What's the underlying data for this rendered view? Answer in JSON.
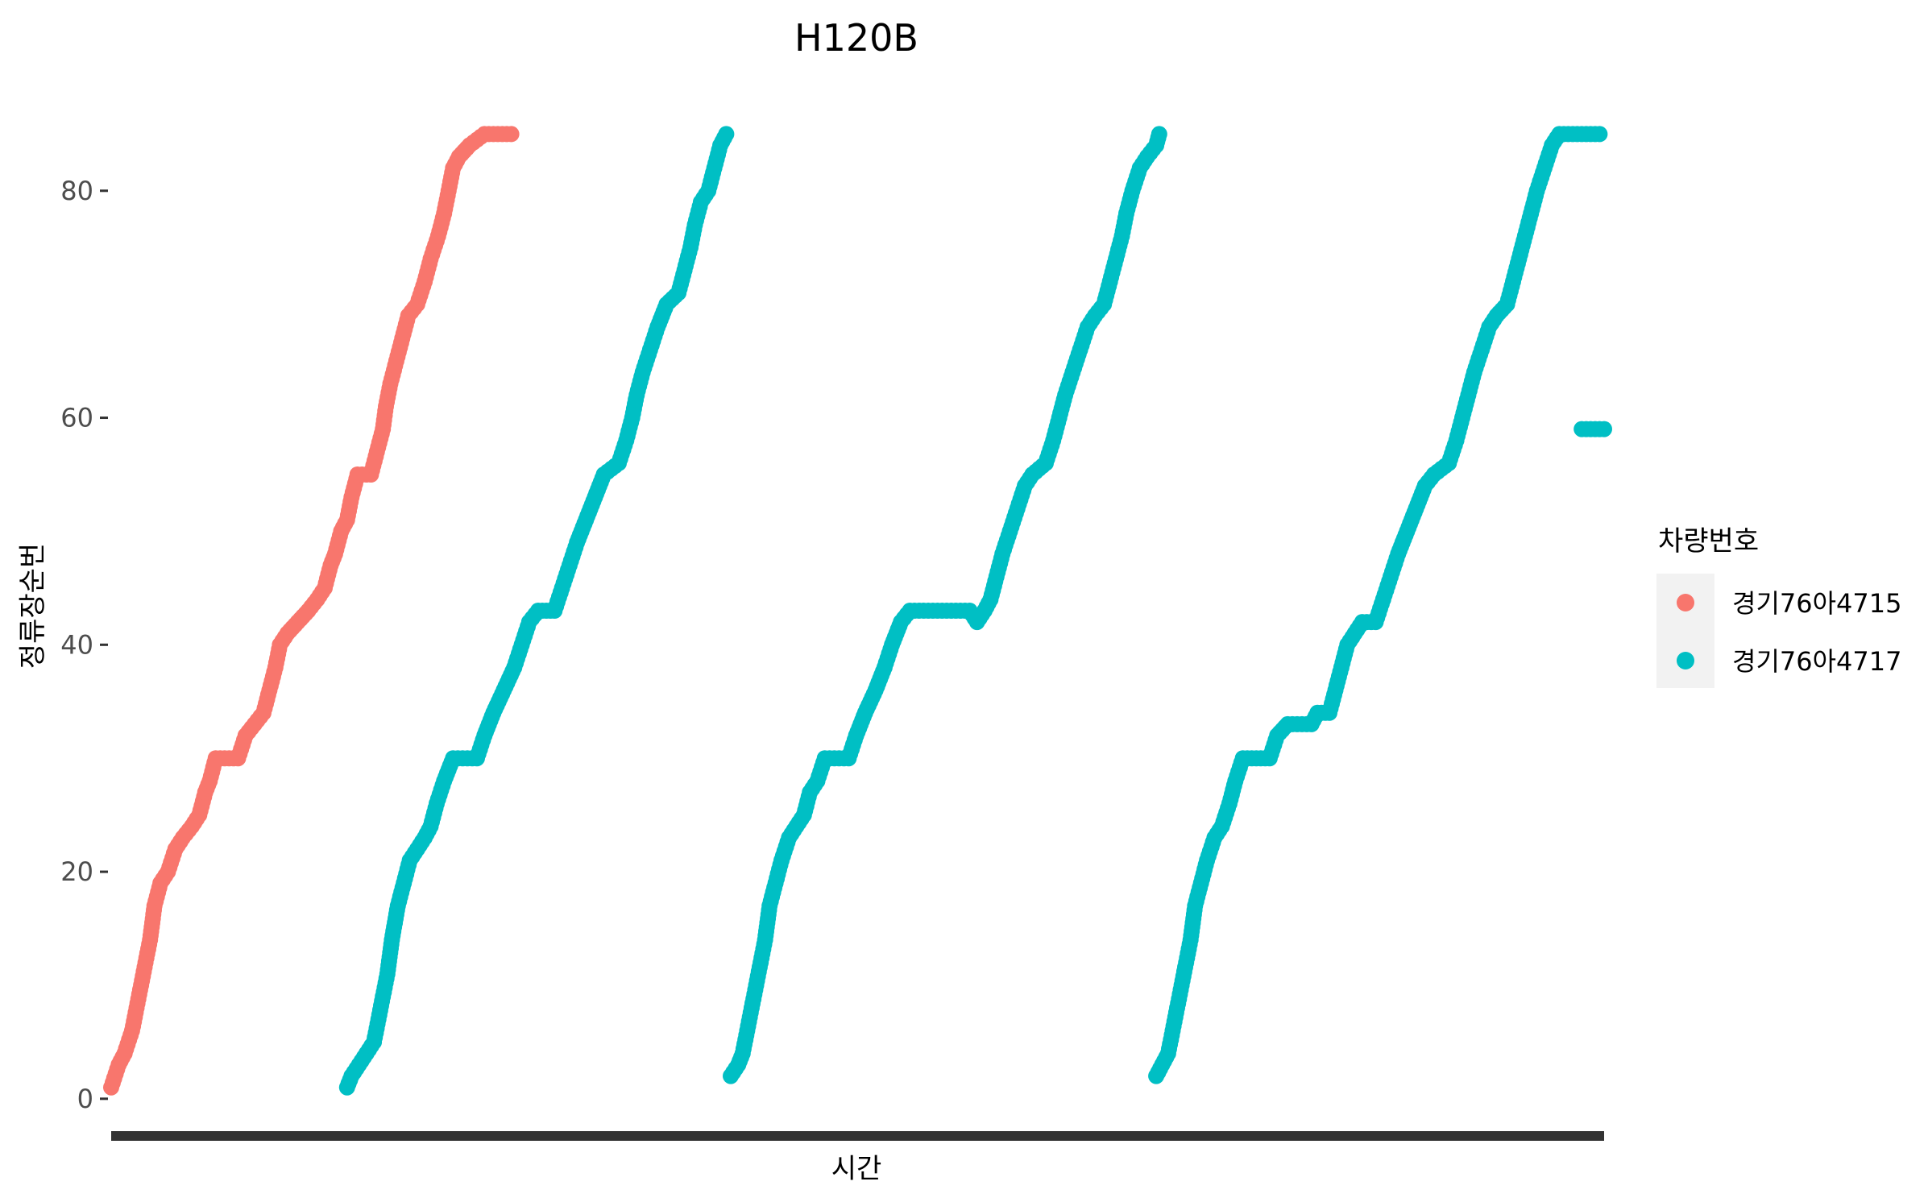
{
  "chart_data": {
    "type": "scatter",
    "title": "H120B",
    "xlabel": "시간",
    "ylabel": "정류장순번",
    "yticks": [
      0,
      20,
      40,
      60,
      80
    ],
    "ylim": [
      -2,
      89
    ],
    "xlim": [
      0,
      100
    ],
    "x_tick_labels": "dense, illegible",
    "grid": false,
    "legend": {
      "title": "차량번호",
      "placement": "right",
      "entries": [
        "경기76아4715",
        "경기76아4717"
      ]
    },
    "colors": {
      "경기76아4715": "#F8766D",
      "경기76아4717": "#00BFC4"
    },
    "series": [
      {
        "name": "경기76아4715",
        "color": "#F8766D",
        "points": [
          [
            0.0,
            1
          ],
          [
            0.5,
            3
          ],
          [
            0.9,
            4
          ],
          [
            1.4,
            6
          ],
          [
            1.7,
            8
          ],
          [
            2.0,
            10
          ],
          [
            2.3,
            12
          ],
          [
            2.6,
            14
          ],
          [
            2.9,
            17
          ],
          [
            3.3,
            19
          ],
          [
            3.8,
            20
          ],
          [
            4.3,
            22
          ],
          [
            4.8,
            23
          ],
          [
            5.4,
            24
          ],
          [
            5.9,
            25
          ],
          [
            6.3,
            27
          ],
          [
            6.6,
            28
          ],
          [
            7.0,
            30
          ],
          [
            8.5,
            30
          ],
          [
            9.0,
            32
          ],
          [
            9.6,
            33
          ],
          [
            10.2,
            34
          ],
          [
            10.6,
            36
          ],
          [
            11.0,
            38
          ],
          [
            11.3,
            40
          ],
          [
            11.8,
            41
          ],
          [
            12.5,
            42
          ],
          [
            13.2,
            43
          ],
          [
            13.8,
            44
          ],
          [
            14.3,
            45
          ],
          [
            14.7,
            47
          ],
          [
            15.0,
            48
          ],
          [
            15.4,
            50
          ],
          [
            15.8,
            51
          ],
          [
            16.1,
            53
          ],
          [
            16.5,
            55
          ],
          [
            17.4,
            55
          ],
          [
            17.8,
            57
          ],
          [
            18.2,
            59
          ],
          [
            18.4,
            61
          ],
          [
            18.7,
            63
          ],
          [
            19.1,
            65
          ],
          [
            19.5,
            67
          ],
          [
            19.9,
            69
          ],
          [
            20.5,
            70
          ],
          [
            21.0,
            72
          ],
          [
            21.4,
            74
          ],
          [
            21.9,
            76
          ],
          [
            22.3,
            78
          ],
          [
            22.6,
            80
          ],
          [
            22.9,
            82
          ],
          [
            23.3,
            83
          ],
          [
            24.0,
            84
          ],
          [
            25.0,
            85
          ],
          [
            26.8,
            85
          ]
        ]
      },
      {
        "name": "경기76아4717",
        "color": "#00BFC4",
        "segments": [
          [
            [
              15.8,
              1
            ],
            [
              16.1,
              2
            ],
            [
              16.6,
              3
            ],
            [
              17.1,
              4
            ],
            [
              17.6,
              5
            ],
            [
              17.9,
              7
            ],
            [
              18.2,
              9
            ],
            [
              18.5,
              11
            ],
            [
              18.8,
              14
            ],
            [
              19.2,
              17
            ],
            [
              19.6,
              19
            ],
            [
              20.0,
              21
            ],
            [
              20.5,
              22
            ],
            [
              21.0,
              23
            ],
            [
              21.4,
              24
            ],
            [
              21.8,
              26
            ],
            [
              22.3,
              28
            ],
            [
              22.9,
              30
            ],
            [
              24.5,
              30
            ],
            [
              25.0,
              32
            ],
            [
              25.6,
              34
            ],
            [
              26.3,
              36
            ],
            [
              27.0,
              38
            ],
            [
              27.5,
              40
            ],
            [
              28.0,
              42
            ],
            [
              28.6,
              43
            ],
            [
              29.7,
              43
            ],
            [
              30.2,
              45
            ],
            [
              30.7,
              47
            ],
            [
              31.2,
              49
            ],
            [
              31.8,
              51
            ],
            [
              32.4,
              53
            ],
            [
              33.0,
              55
            ],
            [
              34.0,
              56
            ],
            [
              34.5,
              58
            ],
            [
              34.9,
              60
            ],
            [
              35.2,
              62
            ],
            [
              35.6,
              64
            ],
            [
              36.1,
              66
            ],
            [
              36.6,
              68
            ],
            [
              37.2,
              70
            ],
            [
              38.0,
              71
            ],
            [
              38.4,
              73
            ],
            [
              38.8,
              75
            ],
            [
              39.1,
              77
            ],
            [
              39.5,
              79
            ],
            [
              40.0,
              80
            ],
            [
              40.4,
              82
            ],
            [
              40.8,
              84
            ],
            [
              41.2,
              85
            ]
          ],
          [
            [
              41.5,
              2
            ],
            [
              42.0,
              3
            ],
            [
              42.3,
              4
            ],
            [
              42.6,
              6
            ],
            [
              42.9,
              8
            ],
            [
              43.2,
              10
            ],
            [
              43.5,
              12
            ],
            [
              43.8,
              14
            ],
            [
              44.1,
              17
            ],
            [
              44.5,
              19
            ],
            [
              44.9,
              21
            ],
            [
              45.4,
              23
            ],
            [
              45.9,
              24
            ],
            [
              46.4,
              25
            ],
            [
              46.8,
              27
            ],
            [
              47.3,
              28
            ],
            [
              47.8,
              30
            ],
            [
              49.4,
              30
            ],
            [
              49.9,
              32
            ],
            [
              50.5,
              34
            ],
            [
              51.2,
              36
            ],
            [
              51.8,
              38
            ],
            [
              52.3,
              40
            ],
            [
              52.9,
              42
            ],
            [
              53.5,
              43
            ],
            [
              57.5,
              43
            ],
            [
              58.0,
              42
            ],
            [
              58.5,
              43
            ],
            [
              58.9,
              44
            ],
            [
              59.3,
              46
            ],
            [
              59.7,
              48
            ],
            [
              60.2,
              50
            ],
            [
              60.7,
              52
            ],
            [
              61.2,
              54
            ],
            [
              61.7,
              55
            ],
            [
              62.6,
              56
            ],
            [
              63.1,
              58
            ],
            [
              63.5,
              60
            ],
            [
              63.9,
              62
            ],
            [
              64.4,
              64
            ],
            [
              64.9,
              66
            ],
            [
              65.4,
              68
            ],
            [
              65.9,
              69
            ],
            [
              66.5,
              70
            ],
            [
              66.9,
              72
            ],
            [
              67.3,
              74
            ],
            [
              67.7,
              76
            ],
            [
              68.0,
              78
            ],
            [
              68.4,
              80
            ],
            [
              68.9,
              82
            ],
            [
              69.4,
              83
            ],
            [
              70.0,
              84
            ],
            [
              70.2,
              85
            ]
          ],
          [
            [
              70.0,
              2
            ],
            [
              70.4,
              3
            ],
            [
              70.8,
              4
            ],
            [
              71.1,
              6
            ],
            [
              71.4,
              8
            ],
            [
              71.7,
              10
            ],
            [
              72.0,
              12
            ],
            [
              72.3,
              14
            ],
            [
              72.6,
              17
            ],
            [
              73.0,
              19
            ],
            [
              73.4,
              21
            ],
            [
              73.9,
              23
            ],
            [
              74.4,
              24
            ],
            [
              74.9,
              26
            ],
            [
              75.3,
              28
            ],
            [
              75.8,
              30
            ],
            [
              77.6,
              30
            ],
            [
              78.1,
              32
            ],
            [
              78.8,
              33
            ],
            [
              80.4,
              33
            ],
            [
              80.8,
              34
            ],
            [
              81.6,
              34
            ],
            [
              82.0,
              36
            ],
            [
              82.4,
              38
            ],
            [
              82.8,
              40
            ],
            [
              83.3,
              41
            ],
            [
              83.8,
              42
            ],
            [
              84.7,
              42
            ],
            [
              85.2,
              44
            ],
            [
              85.7,
              46
            ],
            [
              86.2,
              48
            ],
            [
              86.8,
              50
            ],
            [
              87.4,
              52
            ],
            [
              88.0,
              54
            ],
            [
              88.6,
              55
            ],
            [
              89.6,
              56
            ],
            [
              90.1,
              58
            ],
            [
              90.5,
              60
            ],
            [
              90.9,
              62
            ],
            [
              91.3,
              64
            ],
            [
              91.8,
              66
            ],
            [
              92.3,
              68
            ],
            [
              92.8,
              69
            ],
            [
              93.5,
              70
            ],
            [
              93.9,
              72
            ],
            [
              94.3,
              74
            ],
            [
              94.7,
              76
            ],
            [
              95.1,
              78
            ],
            [
              95.5,
              80
            ],
            [
              96.0,
              82
            ],
            [
              96.5,
              84
            ],
            [
              97.0,
              85
            ],
            [
              99.7,
              85
            ]
          ],
          [
            [
              98.5,
              59
            ],
            [
              100.0,
              59
            ]
          ]
        ]
      }
    ]
  }
}
